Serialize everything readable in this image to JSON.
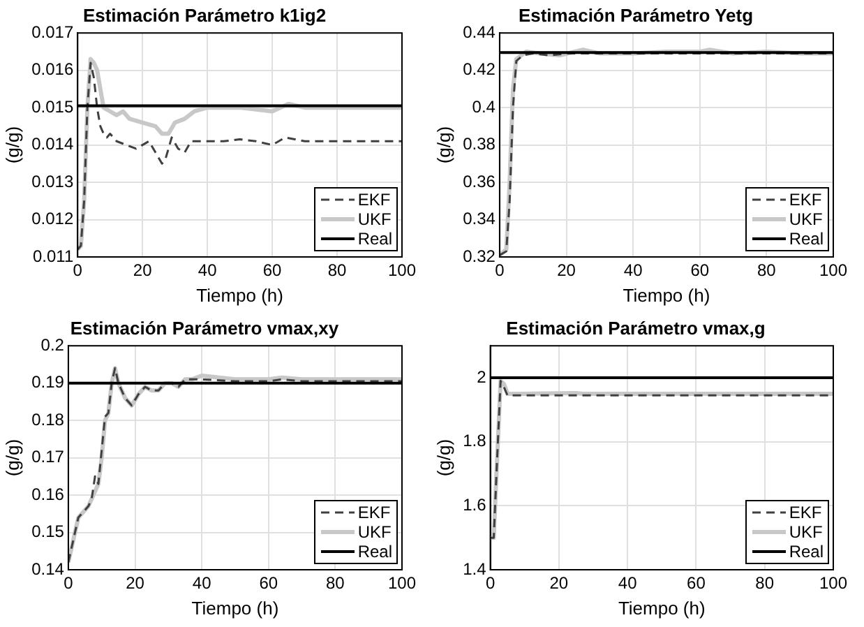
{
  "chart_data": [
    {
      "type": "line",
      "title": "Estimación Parámetro k1ig2",
      "xlabel": "Tiempo (h)",
      "ylabel": "(g/g)",
      "xlim": [
        0,
        100
      ],
      "xticks": [
        0,
        20,
        40,
        60,
        80,
        100
      ],
      "ylim": [
        0.011,
        0.017
      ],
      "yticks": [
        0.011,
        0.012,
        0.013,
        0.014,
        0.015,
        0.016,
        0.017
      ],
      "grid": true,
      "legend": "bottom right",
      "series": [
        {
          "name": "EKF",
          "color": "#404040",
          "line_style": "dashed",
          "x": [
            0,
            1,
            2,
            3,
            4,
            5,
            6,
            7,
            8,
            9,
            10,
            12,
            15,
            18,
            20,
            22,
            24,
            26,
            27,
            29,
            31,
            33,
            35,
            40,
            45,
            50,
            55,
            60,
            62,
            64,
            70,
            80,
            100
          ],
          "values": [
            0.0112,
            0.0113,
            0.0125,
            0.015,
            0.0162,
            0.0158,
            0.015,
            0.0145,
            0.0143,
            0.0142,
            0.0143,
            0.0141,
            0.014,
            0.0139,
            0.014,
            0.0141,
            0.0138,
            0.0135,
            0.0136,
            0.0142,
            0.0139,
            0.0138,
            0.0141,
            0.0141,
            0.0141,
            0.01415,
            0.0141,
            0.014,
            0.0141,
            0.0142,
            0.0141,
            0.0141,
            0.0141
          ]
        },
        {
          "name": "UKF",
          "color": "#c8c8c8",
          "line_style": "solid",
          "x": [
            0,
            1,
            2,
            3,
            4,
            5,
            6,
            7,
            8,
            10,
            12,
            14,
            16,
            20,
            24,
            26,
            28,
            30,
            33,
            36,
            40,
            50,
            60,
            65,
            70,
            100
          ],
          "values": [
            0.0112,
            0.0113,
            0.0125,
            0.015,
            0.0163,
            0.0162,
            0.016,
            0.0155,
            0.015,
            0.0149,
            0.0148,
            0.0149,
            0.0147,
            0.0146,
            0.0145,
            0.0143,
            0.0143,
            0.0146,
            0.0147,
            0.0149,
            0.015,
            0.015,
            0.0149,
            0.0151,
            0.015,
            0.015
          ]
        },
        {
          "name": "Real",
          "color": "#000000",
          "line_style": "solid",
          "x": [
            0,
            100
          ],
          "values": [
            0.01505,
            0.01505
          ]
        }
      ]
    },
    {
      "type": "line",
      "title": "Estimación Parámetro Yetg",
      "xlabel": "Tiempo (h)",
      "ylabel": "(g/g)",
      "xlim": [
        0,
        100
      ],
      "xticks": [
        0,
        20,
        40,
        60,
        80,
        100
      ],
      "ylim": [
        0.32,
        0.44
      ],
      "yticks": [
        0.32,
        0.34,
        0.36,
        0.38,
        0.4,
        0.42,
        0.44
      ],
      "grid": true,
      "legend": "bottom right",
      "series": [
        {
          "name": "EKF",
          "color": "#404040",
          "line_style": "dashed",
          "x": [
            0,
            2,
            3,
            4,
            5,
            7,
            10,
            15,
            20,
            30,
            100
          ],
          "values": [
            0.321,
            0.323,
            0.35,
            0.4,
            0.425,
            0.428,
            0.429,
            0.428,
            0.429,
            0.429,
            0.429
          ]
        },
        {
          "name": "UKF",
          "color": "#c8c8c8",
          "line_style": "solid",
          "x": [
            0,
            2,
            3,
            4,
            5,
            8,
            12,
            18,
            25,
            30,
            40,
            50,
            60,
            63,
            70,
            80,
            90,
            100
          ],
          "values": [
            0.321,
            0.324,
            0.36,
            0.41,
            0.426,
            0.43,
            0.429,
            0.428,
            0.431,
            0.429,
            0.429,
            0.43,
            0.43,
            0.431,
            0.429,
            0.43,
            0.429,
            0.429
          ]
        },
        {
          "name": "Real",
          "color": "#000000",
          "line_style": "solid",
          "x": [
            0,
            100
          ],
          "values": [
            0.4295,
            0.4295
          ]
        }
      ]
    },
    {
      "type": "line",
      "title": "Estimación Parámetro vmax,xy",
      "xlabel": "Tiempo (h)",
      "ylabel": "(g/g)",
      "xlim": [
        0,
        100
      ],
      "xticks": [
        0,
        20,
        40,
        60,
        80,
        100
      ],
      "ylim": [
        0.14,
        0.2
      ],
      "yticks": [
        0.14,
        0.15,
        0.16,
        0.17,
        0.18,
        0.19,
        0.2
      ],
      "grid": true,
      "legend": "bottom right",
      "series": [
        {
          "name": "EKF",
          "color": "#404040",
          "line_style": "dashed",
          "x": [
            0,
            2,
            3,
            5,
            6,
            7,
            8,
            9,
            10,
            11,
            12,
            13,
            14,
            15,
            17,
            19,
            21,
            23,
            25,
            27,
            29,
            31,
            33,
            35,
            37,
            40,
            50,
            60,
            64,
            70,
            100
          ],
          "values": [
            0.142,
            0.15,
            0.154,
            0.156,
            0.157,
            0.159,
            0.165,
            0.163,
            0.172,
            0.181,
            0.182,
            0.19,
            0.194,
            0.19,
            0.186,
            0.184,
            0.187,
            0.189,
            0.188,
            0.188,
            0.19,
            0.19,
            0.189,
            0.191,
            0.191,
            0.191,
            0.1905,
            0.1905,
            0.191,
            0.1905,
            0.1905
          ]
        },
        {
          "name": "UKF",
          "color": "#c8c8c8",
          "line_style": "solid",
          "x": [
            0,
            2,
            3,
            5,
            6,
            7,
            8,
            9,
            10,
            11,
            12,
            13,
            14,
            15,
            17,
            19,
            21,
            23,
            25,
            27,
            29,
            31,
            33,
            35,
            37,
            40,
            50,
            60,
            64,
            70,
            100
          ],
          "values": [
            0.142,
            0.15,
            0.154,
            0.156,
            0.157,
            0.159,
            0.161,
            0.163,
            0.17,
            0.18,
            0.182,
            0.19,
            0.194,
            0.19,
            0.186,
            0.184,
            0.187,
            0.189,
            0.188,
            0.188,
            0.19,
            0.19,
            0.189,
            0.191,
            0.191,
            0.192,
            0.191,
            0.191,
            0.1915,
            0.191,
            0.191
          ]
        },
        {
          "name": "Real",
          "color": "#000000",
          "line_style": "solid",
          "x": [
            0,
            100
          ],
          "values": [
            0.19,
            0.19
          ]
        }
      ]
    },
    {
      "type": "line",
      "title": "Estimación Parámetro vmax,g",
      "xlabel": "Tiempo (h)",
      "ylabel": "(g/g)",
      "xlim": [
        0,
        100
      ],
      "xticks": [
        0,
        20,
        40,
        60,
        80,
        100
      ],
      "ylim": [
        1.4,
        2.1
      ],
      "yticks": [
        1.4,
        1.6,
        1.8,
        2
      ],
      "grid": true,
      "legend": "bottom right",
      "series": [
        {
          "name": "EKF",
          "color": "#404040",
          "line_style": "dashed",
          "x": [
            0,
            1,
            2,
            3,
            4,
            5,
            100
          ],
          "values": [
            1.5,
            1.5,
            1.75,
            1.99,
            1.97,
            1.945,
            1.945
          ]
        },
        {
          "name": "UKF",
          "color": "#c8c8c8",
          "line_style": "solid",
          "x": [
            0,
            1,
            2,
            3,
            4,
            5,
            10,
            25,
            27,
            100
          ],
          "values": [
            1.5,
            1.5,
            1.75,
            1.99,
            1.98,
            1.95,
            1.95,
            1.952,
            1.95,
            1.95
          ]
        },
        {
          "name": "Real",
          "color": "#000000",
          "line_style": "solid",
          "x": [
            0,
            100
          ],
          "values": [
            2,
            2
          ]
        }
      ]
    }
  ]
}
